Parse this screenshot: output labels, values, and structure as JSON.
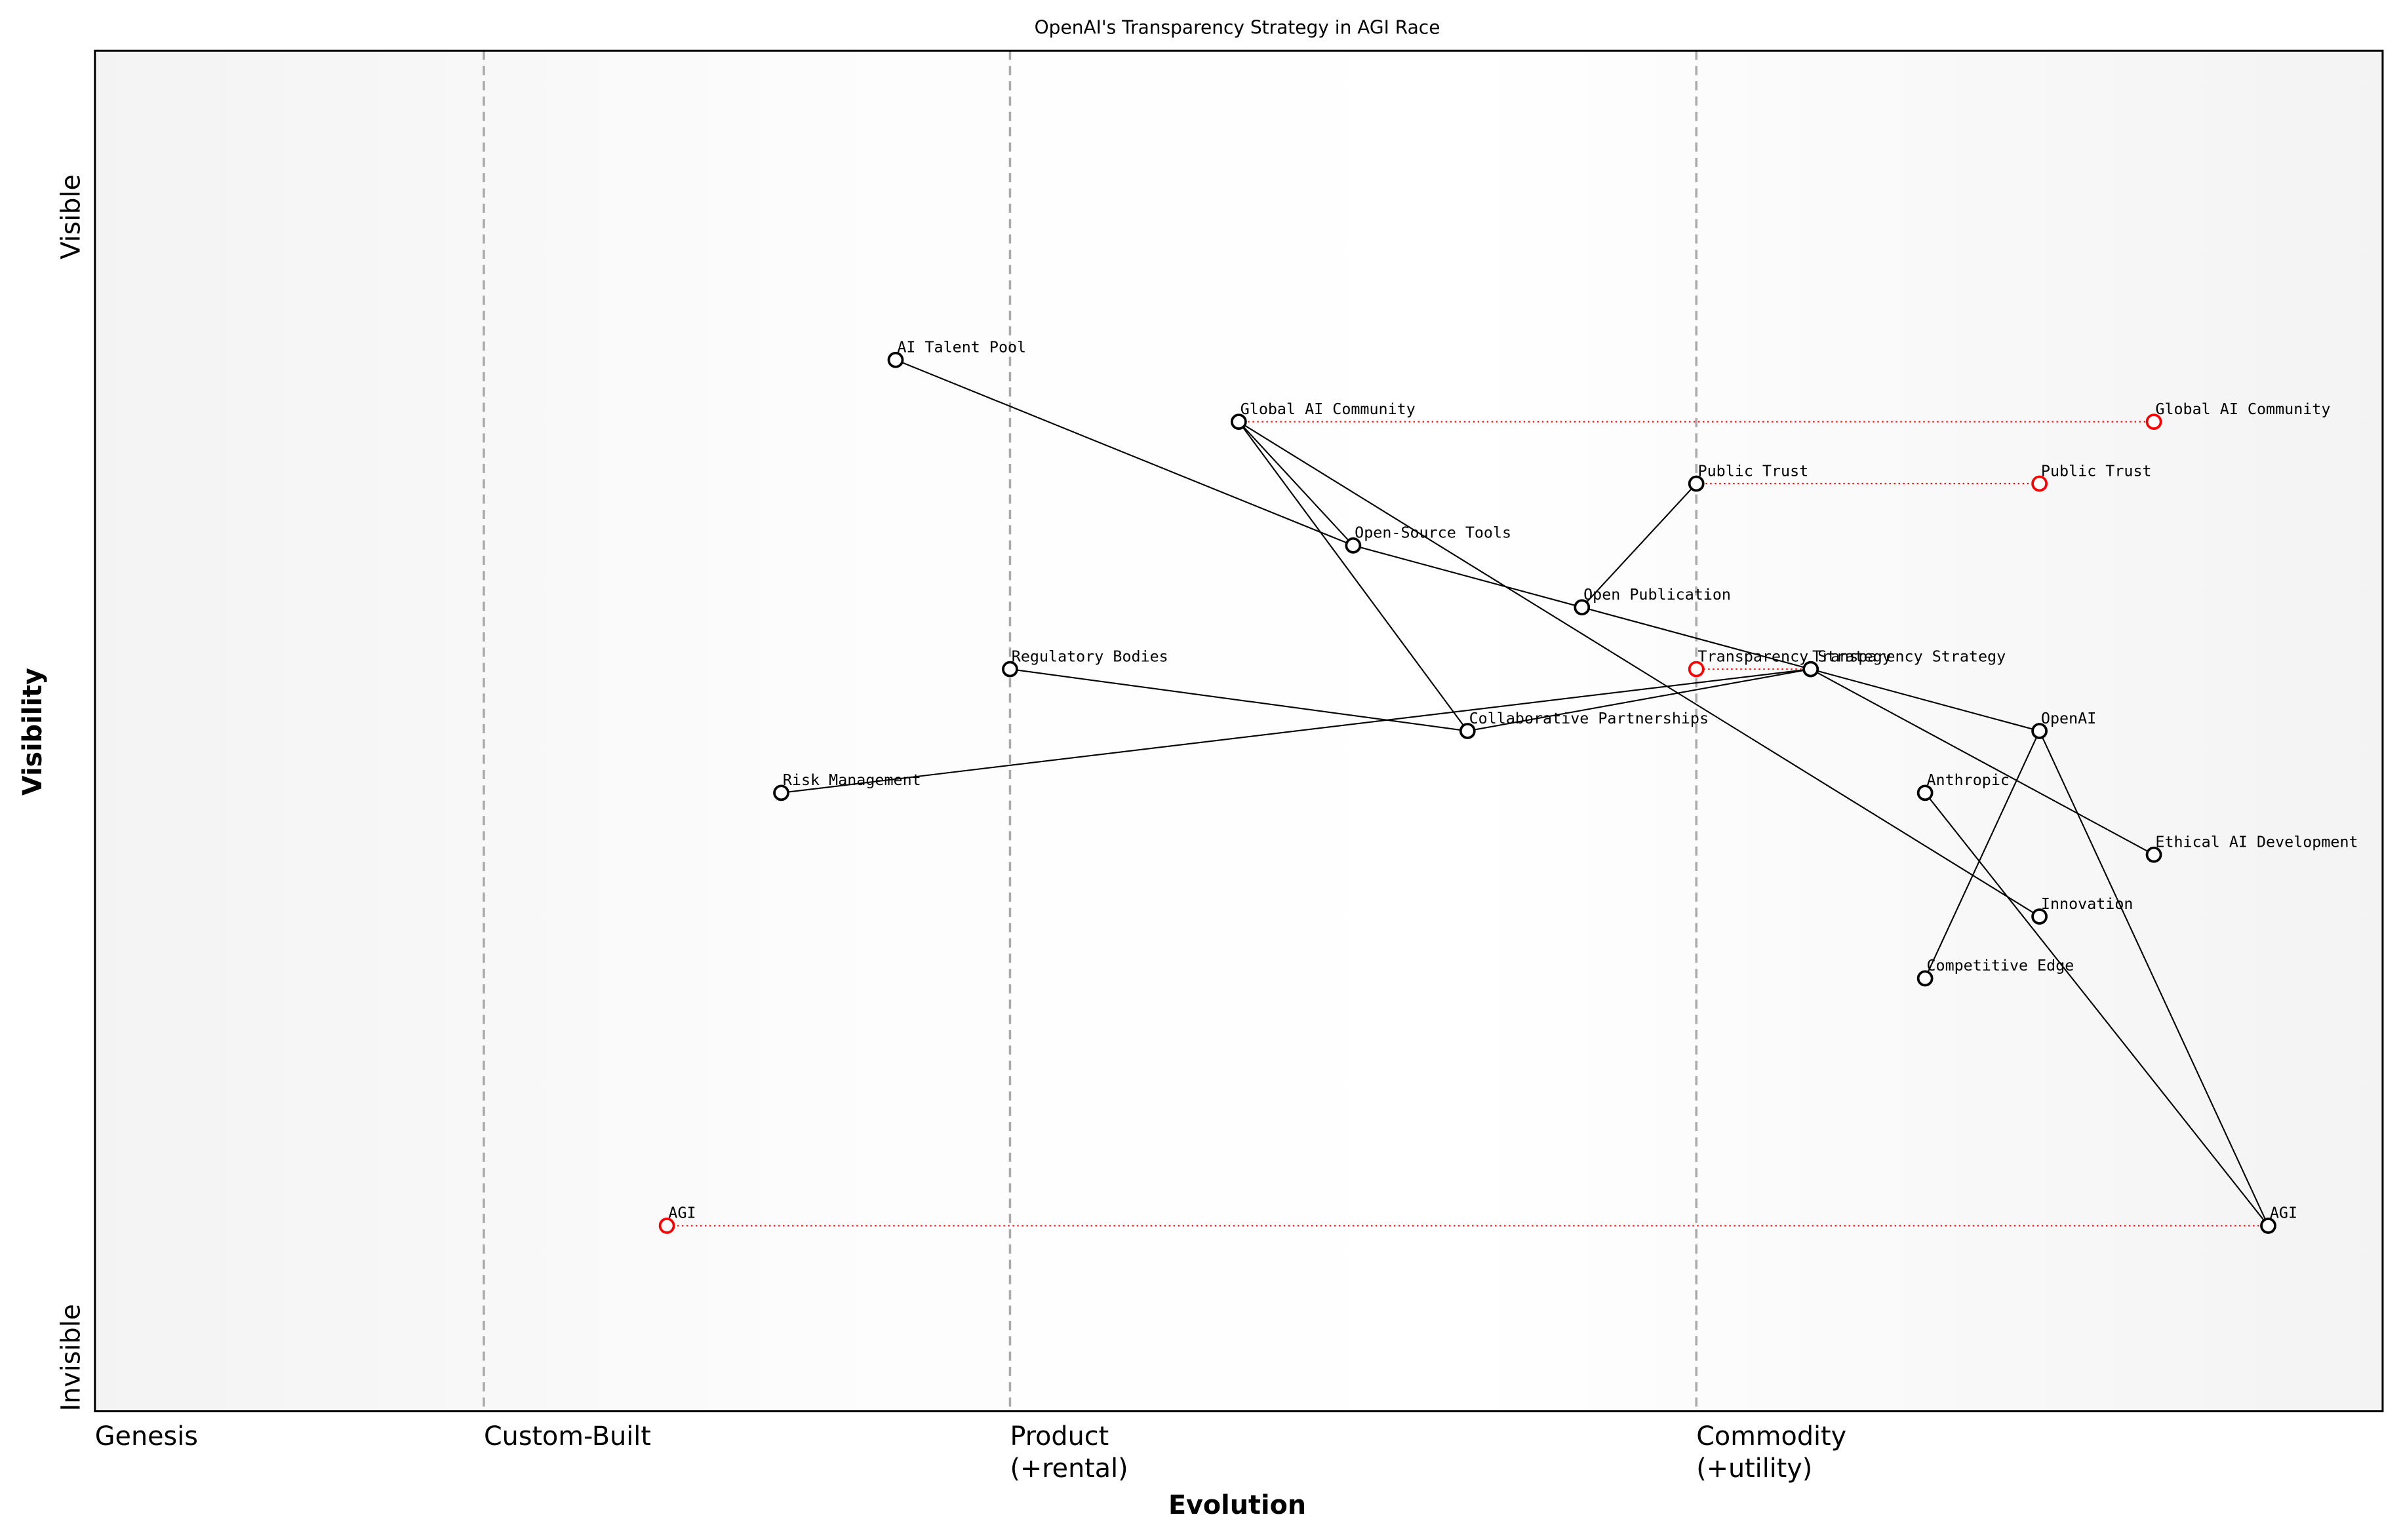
{
  "chart_data": {
    "type": "wardley",
    "title": "OpenAI's Transparency Strategy in AGI Race",
    "x_label": "Evolution",
    "y_label": "Visibility",
    "xlim": [
      0,
      1
    ],
    "ylim": [
      -0.05,
      1.05
    ],
    "xticks": [
      {
        "value": 0,
        "label": "Genesis"
      },
      {
        "value": 0.17,
        "label": "Custom-Built"
      },
      {
        "value": 0.4,
        "label": "Product\n(+rental)"
      },
      {
        "value": 0.7,
        "label": "Commodity\n(+utility)"
      }
    ],
    "yticks": [
      {
        "value": -0.05,
        "label": "Invisible"
      },
      {
        "value": 0.95,
        "label": "Visible"
      }
    ],
    "components": [
      {
        "name": "AI Talent Pool",
        "evolution": 0.35,
        "visibility": 0.8
      },
      {
        "name": "Global AI Community",
        "evolution": 0.5,
        "visibility": 0.75
      },
      {
        "name": "Public Trust",
        "evolution": 0.7,
        "visibility": 0.7
      },
      {
        "name": "Open-Source Tools",
        "evolution": 0.55,
        "visibility": 0.65
      },
      {
        "name": "Open Publication",
        "evolution": 0.65,
        "visibility": 0.6
      },
      {
        "name": "Transparency Strategy",
        "evolution": 0.75,
        "visibility": 0.55
      },
      {
        "name": "Regulatory Bodies",
        "evolution": 0.4,
        "visibility": 0.55
      },
      {
        "name": "Collaborative Partnerships",
        "evolution": 0.6,
        "visibility": 0.5
      },
      {
        "name": "OpenAI",
        "evolution": 0.85,
        "visibility": 0.5
      },
      {
        "name": "Risk Management",
        "evolution": 0.3,
        "visibility": 0.45
      },
      {
        "name": "Anthropic",
        "evolution": 0.8,
        "visibility": 0.45
      },
      {
        "name": "Ethical AI Development",
        "evolution": 0.9,
        "visibility": 0.4
      },
      {
        "name": "Innovation",
        "evolution": 0.85,
        "visibility": 0.35
      },
      {
        "name": "Competitive Edge",
        "evolution": 0.8,
        "visibility": 0.3
      },
      {
        "name": "AGI",
        "evolution": 0.95,
        "visibility": 0.1
      }
    ],
    "evolutions": [
      {
        "name": "Global AI Community",
        "evolution": 0.9
      },
      {
        "name": "Public Trust",
        "evolution": 0.85
      },
      {
        "name": "Transparency Strategy",
        "evolution": 0.7
      },
      {
        "name": "AGI",
        "evolution": 0.25
      }
    ],
    "component_color": "#000000",
    "evolution_color": "#ff0000"
  }
}
